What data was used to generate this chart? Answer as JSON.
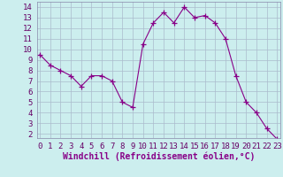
{
  "x": [
    0,
    1,
    2,
    3,
    4,
    5,
    6,
    7,
    8,
    9,
    10,
    11,
    12,
    13,
    14,
    15,
    16,
    17,
    18,
    19,
    20,
    21,
    22,
    23
  ],
  "y": [
    9.5,
    8.5,
    8.0,
    7.5,
    6.5,
    7.5,
    7.5,
    7.0,
    5.0,
    4.5,
    10.5,
    12.5,
    13.5,
    12.5,
    14.0,
    13.0,
    13.2,
    12.5,
    11.0,
    7.5,
    5.0,
    4.0,
    2.5,
    1.5
  ],
  "line_color": "#880088",
  "marker": "+",
  "marker_size": 4,
  "marker_color": "#880088",
  "bg_color": "#cceeee",
  "grid_color": "#aabbcc",
  "xlabel": "Windchill (Refroidissement éolien,°C)",
  "xlabel_color": "#880088",
  "xlabel_fontsize": 7,
  "ytick_labels": [
    "2",
    "3",
    "4",
    "5",
    "6",
    "7",
    "8",
    "9",
    "10",
    "11",
    "12",
    "13",
    "14"
  ],
  "ytick_vals": [
    2,
    3,
    4,
    5,
    6,
    7,
    8,
    9,
    10,
    11,
    12,
    13,
    14
  ],
  "xlim": [
    -0.3,
    23.3
  ],
  "ylim": [
    1.6,
    14.5
  ],
  "xticks": [
    0,
    1,
    2,
    3,
    4,
    5,
    6,
    7,
    8,
    9,
    10,
    11,
    12,
    13,
    14,
    15,
    16,
    17,
    18,
    19,
    20,
    21,
    22,
    23
  ],
  "tick_fontsize": 6.5
}
